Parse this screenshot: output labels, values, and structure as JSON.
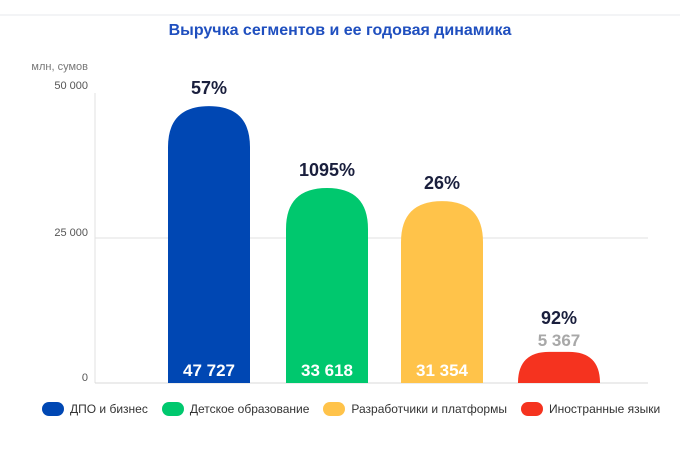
{
  "chart_data": {
    "type": "bar",
    "title": "Выручка сегментов и ее годовая динамика",
    "ylabel": "млн, сумов",
    "ylim": [
      0,
      50000
    ],
    "yticks": [
      {
        "v": 0,
        "label": "0"
      },
      {
        "v": 25000,
        "label": "25 000"
      },
      {
        "v": 50000,
        "label": "50 000"
      }
    ],
    "grid": true,
    "legend_position": "bottom",
    "categories": [
      "ДПО и бизнес",
      "Детское образование",
      "Разработчики и платформы",
      "Иностранные языки"
    ],
    "values": [
      47727,
      33618,
      31354,
      5367
    ],
    "value_labels": [
      "47 727",
      "33 618",
      "31 354",
      "5 367"
    ],
    "growth_labels": [
      "57%",
      "1095%",
      "26%",
      "92%"
    ],
    "colors": [
      "#0047b3",
      "#00c86e",
      "#ffc34a",
      "#f5331f"
    ]
  }
}
